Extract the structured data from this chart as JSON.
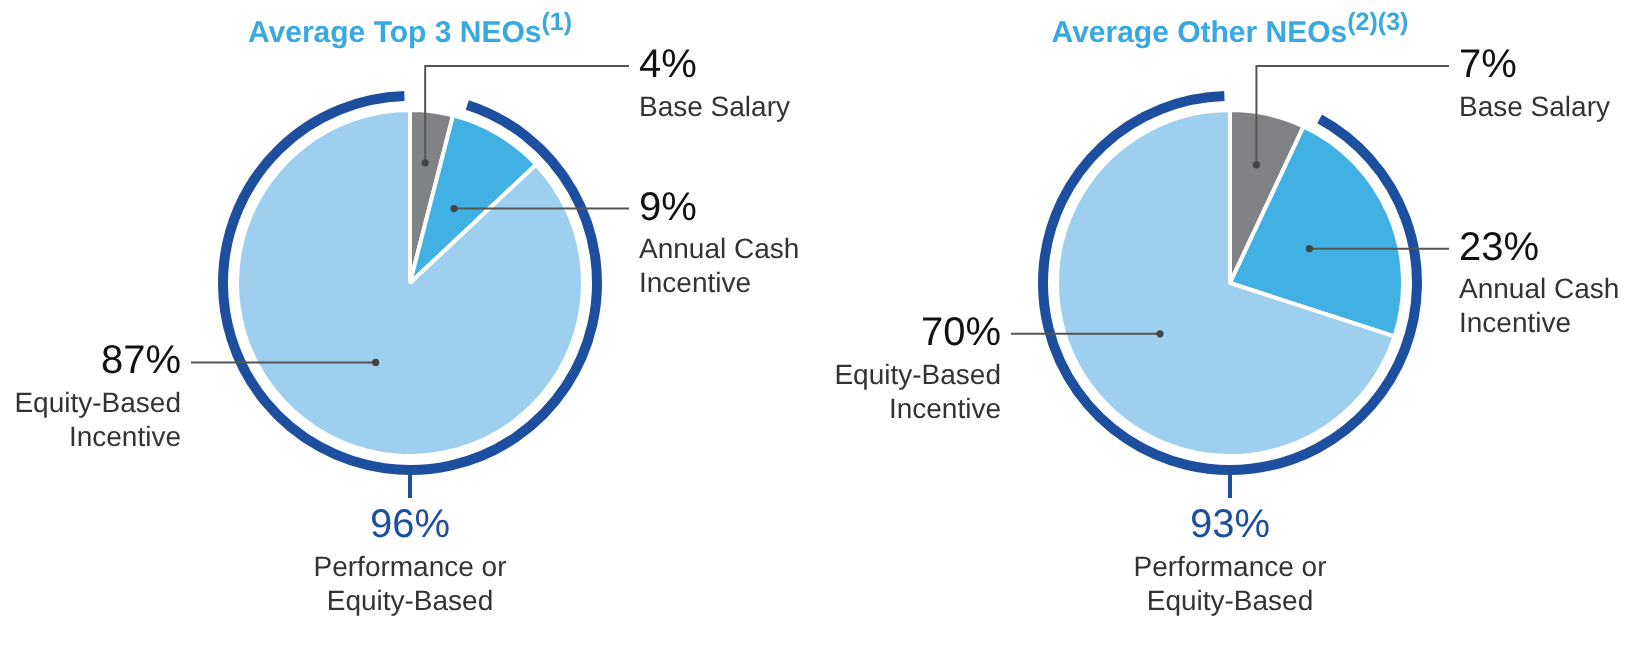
{
  "chart_data": [
    {
      "type": "pie",
      "title": "Average Top 3 NEOs$^{(1)}$",
      "categories": [
        "Base Salary",
        "Annual Cash Incentive",
        "Equity-Based Incentive"
      ],
      "values": [
        4,
        9,
        87
      ],
      "colors": [
        "#808285",
        "#41b0e3",
        "#9fcfef"
      ],
      "value_labels": [
        "4%",
        "9%",
        "87%"
      ],
      "annotations": [
        "96%",
        "Performance or Equity-Based"
      ],
      "legend": false
    },
    {
      "type": "pie",
      "title": "Average Other NEOs$^{(2)(3)}$",
      "categories": [
        "Base Salary",
        "Annual Cash Incentive",
        "Equity-Based Incentive"
      ],
      "values": [
        7,
        23,
        70
      ],
      "colors": [
        "#808285",
        "#41b0e3",
        "#9fcfef"
      ],
      "value_labels": [
        "7%",
        "23%",
        "70%"
      ],
      "annotations": [
        "93%",
        "Performance or Equity-Based"
      ],
      "legend": false
    }
  ]
}
